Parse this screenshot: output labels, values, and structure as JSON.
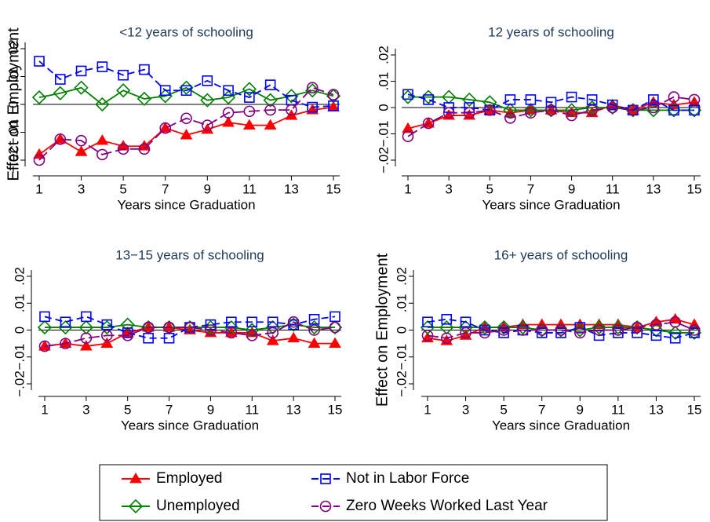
{
  "chart_data": [
    {
      "type": "line",
      "title": "<12 years of schooling",
      "x_label": "Years since Graduation",
      "y_label": "Effect on Employment",
      "x": [
        1,
        2,
        3,
        4,
        5,
        6,
        7,
        8,
        9,
        10,
        11,
        12,
        13,
        14,
        15
      ],
      "xlim": [
        1,
        15
      ],
      "xticks": [
        1,
        3,
        5,
        7,
        9,
        11,
        13,
        15
      ],
      "ylim": [
        -0.02,
        0.02
      ],
      "yticks": [
        {
          "value": -0.02,
          "label": "−.02"
        },
        {
          "value": -0.01,
          "label": "−.01"
        },
        0,
        {
          "value": 0.01,
          "label": ".01"
        },
        {
          "value": 0.02,
          "label": ".02"
        }
      ],
      "hline": 0,
      "series": [
        {
          "name": "Employed",
          "color": "#ff0000",
          "marker": "triangle",
          "dashed": false,
          "values": [
            -0.018,
            -0.0125,
            -0.017,
            -0.013,
            -0.015,
            -0.015,
            -0.0085,
            -0.011,
            -0.009,
            -0.0065,
            -0.0075,
            -0.0075,
            -0.004,
            -0.002,
            -0.001
          ]
        },
        {
          "name": "Unemployed",
          "color": "#008000",
          "marker": "diamond",
          "dashed": false,
          "values": [
            0.0025,
            0.004,
            0.006,
            0,
            0.005,
            0.002,
            0.003,
            0.006,
            0.0015,
            0.0025,
            0.0055,
            0.0015,
            0.003,
            0.005,
            0.003
          ]
        },
        {
          "name": "Not in Labor Force",
          "color": "#0000ff",
          "marker": "square",
          "dashed": true,
          "values": [
            0.0155,
            0.009,
            0.012,
            0.0135,
            0.0105,
            0.0125,
            0.005,
            0.005,
            0.0085,
            0.005,
            0.0025,
            0.007,
            0.0015,
            -0.001,
            -0.0005
          ]
        },
        {
          "name": "Zero Weeks Worked Last Year",
          "color": "#800080",
          "marker": "circle",
          "dashed": true,
          "values": [
            -0.02,
            -0.0125,
            -0.013,
            -0.018,
            -0.016,
            -0.016,
            -0.0085,
            -0.005,
            -0.0075,
            -0.003,
            -0.0025,
            -0.002,
            -0.002,
            0.006,
            0.0035
          ]
        }
      ]
    },
    {
      "type": "line",
      "title": "12 years of schooling",
      "x_label": "Years since Graduation",
      "x": [
        1,
        2,
        3,
        4,
        5,
        6,
        7,
        8,
        9,
        10,
        11,
        12,
        13,
        14,
        15
      ],
      "xlim": [
        1,
        15
      ],
      "xticks": [
        1,
        3,
        5,
        7,
        9,
        11,
        13,
        15
      ],
      "ylim": [
        -0.02,
        0.02
      ],
      "yticks": [
        {
          "value": -0.02,
          "label": "−.02"
        },
        {
          "value": -0.01,
          "label": "−.01"
        },
        0,
        {
          "value": 0.01,
          "label": ".01"
        },
        {
          "value": 0.02,
          "label": ".02"
        }
      ],
      "hline": 0,
      "series": [
        {
          "name": "Employed",
          "color": "#ff0000",
          "marker": "triangle",
          "dashed": false,
          "values": [
            -0.008,
            -0.006,
            -0.003,
            -0.003,
            -0.001,
            -0.002,
            -0.001,
            -0.001,
            -0.002,
            -0.002,
            0.001,
            -0.001,
            0.002,
            0.001,
            0.002
          ]
        },
        {
          "name": "Unemployed",
          "color": "#008000",
          "marker": "diamond",
          "dashed": false,
          "values": [
            0.004,
            0.004,
            0.004,
            0.003,
            0.002,
            -0.001,
            -0.001,
            -0.001,
            -0.001,
            0,
            0,
            -0.001,
            -0.001,
            -0.001,
            -0.001
          ]
        },
        {
          "name": "Not in Labor Force",
          "color": "#0000ff",
          "marker": "square",
          "dashed": true,
          "values": [
            0.005,
            0.003,
            0,
            0,
            -0.001,
            0.003,
            0.003,
            0.002,
            0.004,
            0.003,
            0.001,
            -0.001,
            0.003,
            -0.001,
            -0.001
          ]
        },
        {
          "name": "Zero Weeks Worked Last Year",
          "color": "#800080",
          "marker": "circle",
          "dashed": true,
          "values": [
            -0.011,
            -0.006,
            -0.002,
            -0.002,
            -0.001,
            -0.004,
            -0.002,
            -0.001,
            -0.003,
            -0.001,
            0,
            -0.001,
            0,
            0.004,
            0.003
          ]
        }
      ]
    },
    {
      "type": "line",
      "title": "13−15 years of schooling",
      "x_label": "Years since Graduation",
      "x": [
        1,
        2,
        3,
        4,
        5,
        6,
        7,
        8,
        9,
        10,
        11,
        12,
        13,
        14,
        15
      ],
      "xlim": [
        1,
        15
      ],
      "xticks": [
        1,
        3,
        5,
        7,
        9,
        11,
        13,
        15
      ],
      "ylim": [
        -0.02,
        0.02
      ],
      "yticks": [
        {
          "value": -0.02,
          "label": "−.02"
        },
        {
          "value": -0.01,
          "label": "−.01"
        },
        0,
        {
          "value": 0.01,
          "label": ".01"
        },
        {
          "value": 0.02,
          "label": ".02"
        }
      ],
      "hline": 0,
      "series": [
        {
          "name": "Employed",
          "color": "#ff0000",
          "marker": "triangle",
          "dashed": false,
          "values": [
            -0.006,
            -0.005,
            -0.006,
            -0.005,
            -0.001,
            0.001,
            0.001,
            0,
            -0.001,
            -0.001,
            -0.001,
            -0.004,
            -0.003,
            -0.005,
            -0.005
          ]
        },
        {
          "name": "Unemployed",
          "color": "#008000",
          "marker": "diamond",
          "dashed": false,
          "values": [
            0.001,
            0.001,
            0.001,
            0.001,
            0.002,
            0.001,
            0.001,
            0.001,
            0.001,
            0.001,
            0,
            0.001,
            0.002,
            0.001,
            0.001
          ]
        },
        {
          "name": "Not in Labor Force",
          "color": "#0000ff",
          "marker": "square",
          "dashed": true,
          "values": [
            0.005,
            0.003,
            0.005,
            0.002,
            -0.001,
            -0.003,
            -0.003,
            0.001,
            0.002,
            0.003,
            0.003,
            0.003,
            0.002,
            0.004,
            0.005
          ]
        },
        {
          "name": "Zero Weeks Worked Last Year",
          "color": "#800080",
          "marker": "circle",
          "dashed": true,
          "values": [
            -0.006,
            -0.005,
            -0.003,
            -0.002,
            -0.002,
            0.001,
            0.001,
            0.001,
            0,
            -0.001,
            -0.002,
            -0.001,
            0.003,
            0,
            0.001
          ]
        }
      ]
    },
    {
      "type": "line",
      "title": "16+ years of schooling",
      "x_label": "Years since Graduation",
      "y_label": "Effect on Employment",
      "x": [
        1,
        2,
        3,
        4,
        5,
        6,
        7,
        8,
        9,
        10,
        11,
        12,
        13,
        14,
        15
      ],
      "xlim": [
        1,
        15
      ],
      "xticks": [
        1,
        3,
        5,
        7,
        9,
        11,
        13,
        15
      ],
      "ylim": [
        -0.02,
        0.02
      ],
      "yticks": [
        {
          "value": -0.02,
          "label": "−.02"
        },
        {
          "value": -0.01,
          "label": "−.01"
        },
        0,
        {
          "value": 0.01,
          "label": ".01"
        },
        {
          "value": 0.02,
          "label": ".02"
        }
      ],
      "hline": 0,
      "series": [
        {
          "name": "Employed",
          "color": "#ff0000",
          "marker": "triangle",
          "dashed": false,
          "values": [
            -0.003,
            -0.004,
            -0.002,
            0.001,
            0.001,
            0.002,
            0.002,
            0.002,
            0.002,
            0.002,
            0.002,
            0.001,
            0.003,
            0.004,
            0.002
          ]
        },
        {
          "name": "Unemployed",
          "color": "#008000",
          "marker": "diamond",
          "dashed": false,
          "values": [
            0.001,
            0.001,
            0.001,
            0.001,
            0.001,
            0.001,
            0,
            0,
            0,
            0.001,
            0.001,
            0.001,
            0,
            -0.001,
            -0.001
          ]
        },
        {
          "name": "Not in Labor Force",
          "color": "#0000ff",
          "marker": "square",
          "dashed": true,
          "values": [
            0.003,
            0.004,
            0.003,
            0,
            -0.001,
            0,
            -0.001,
            -0.001,
            0.001,
            -0.002,
            -0.001,
            -0.001,
            -0.002,
            -0.003,
            -0.001
          ]
        },
        {
          "name": "Zero Weeks Worked Last Year",
          "color": "#800080",
          "marker": "circle",
          "dashed": true,
          "values": [
            -0.002,
            -0.003,
            -0.001,
            -0.001,
            0,
            0,
            0,
            0,
            -0.001,
            0,
            0,
            0.001,
            0.002,
            0.003,
            0
          ]
        }
      ]
    }
  ]
}
